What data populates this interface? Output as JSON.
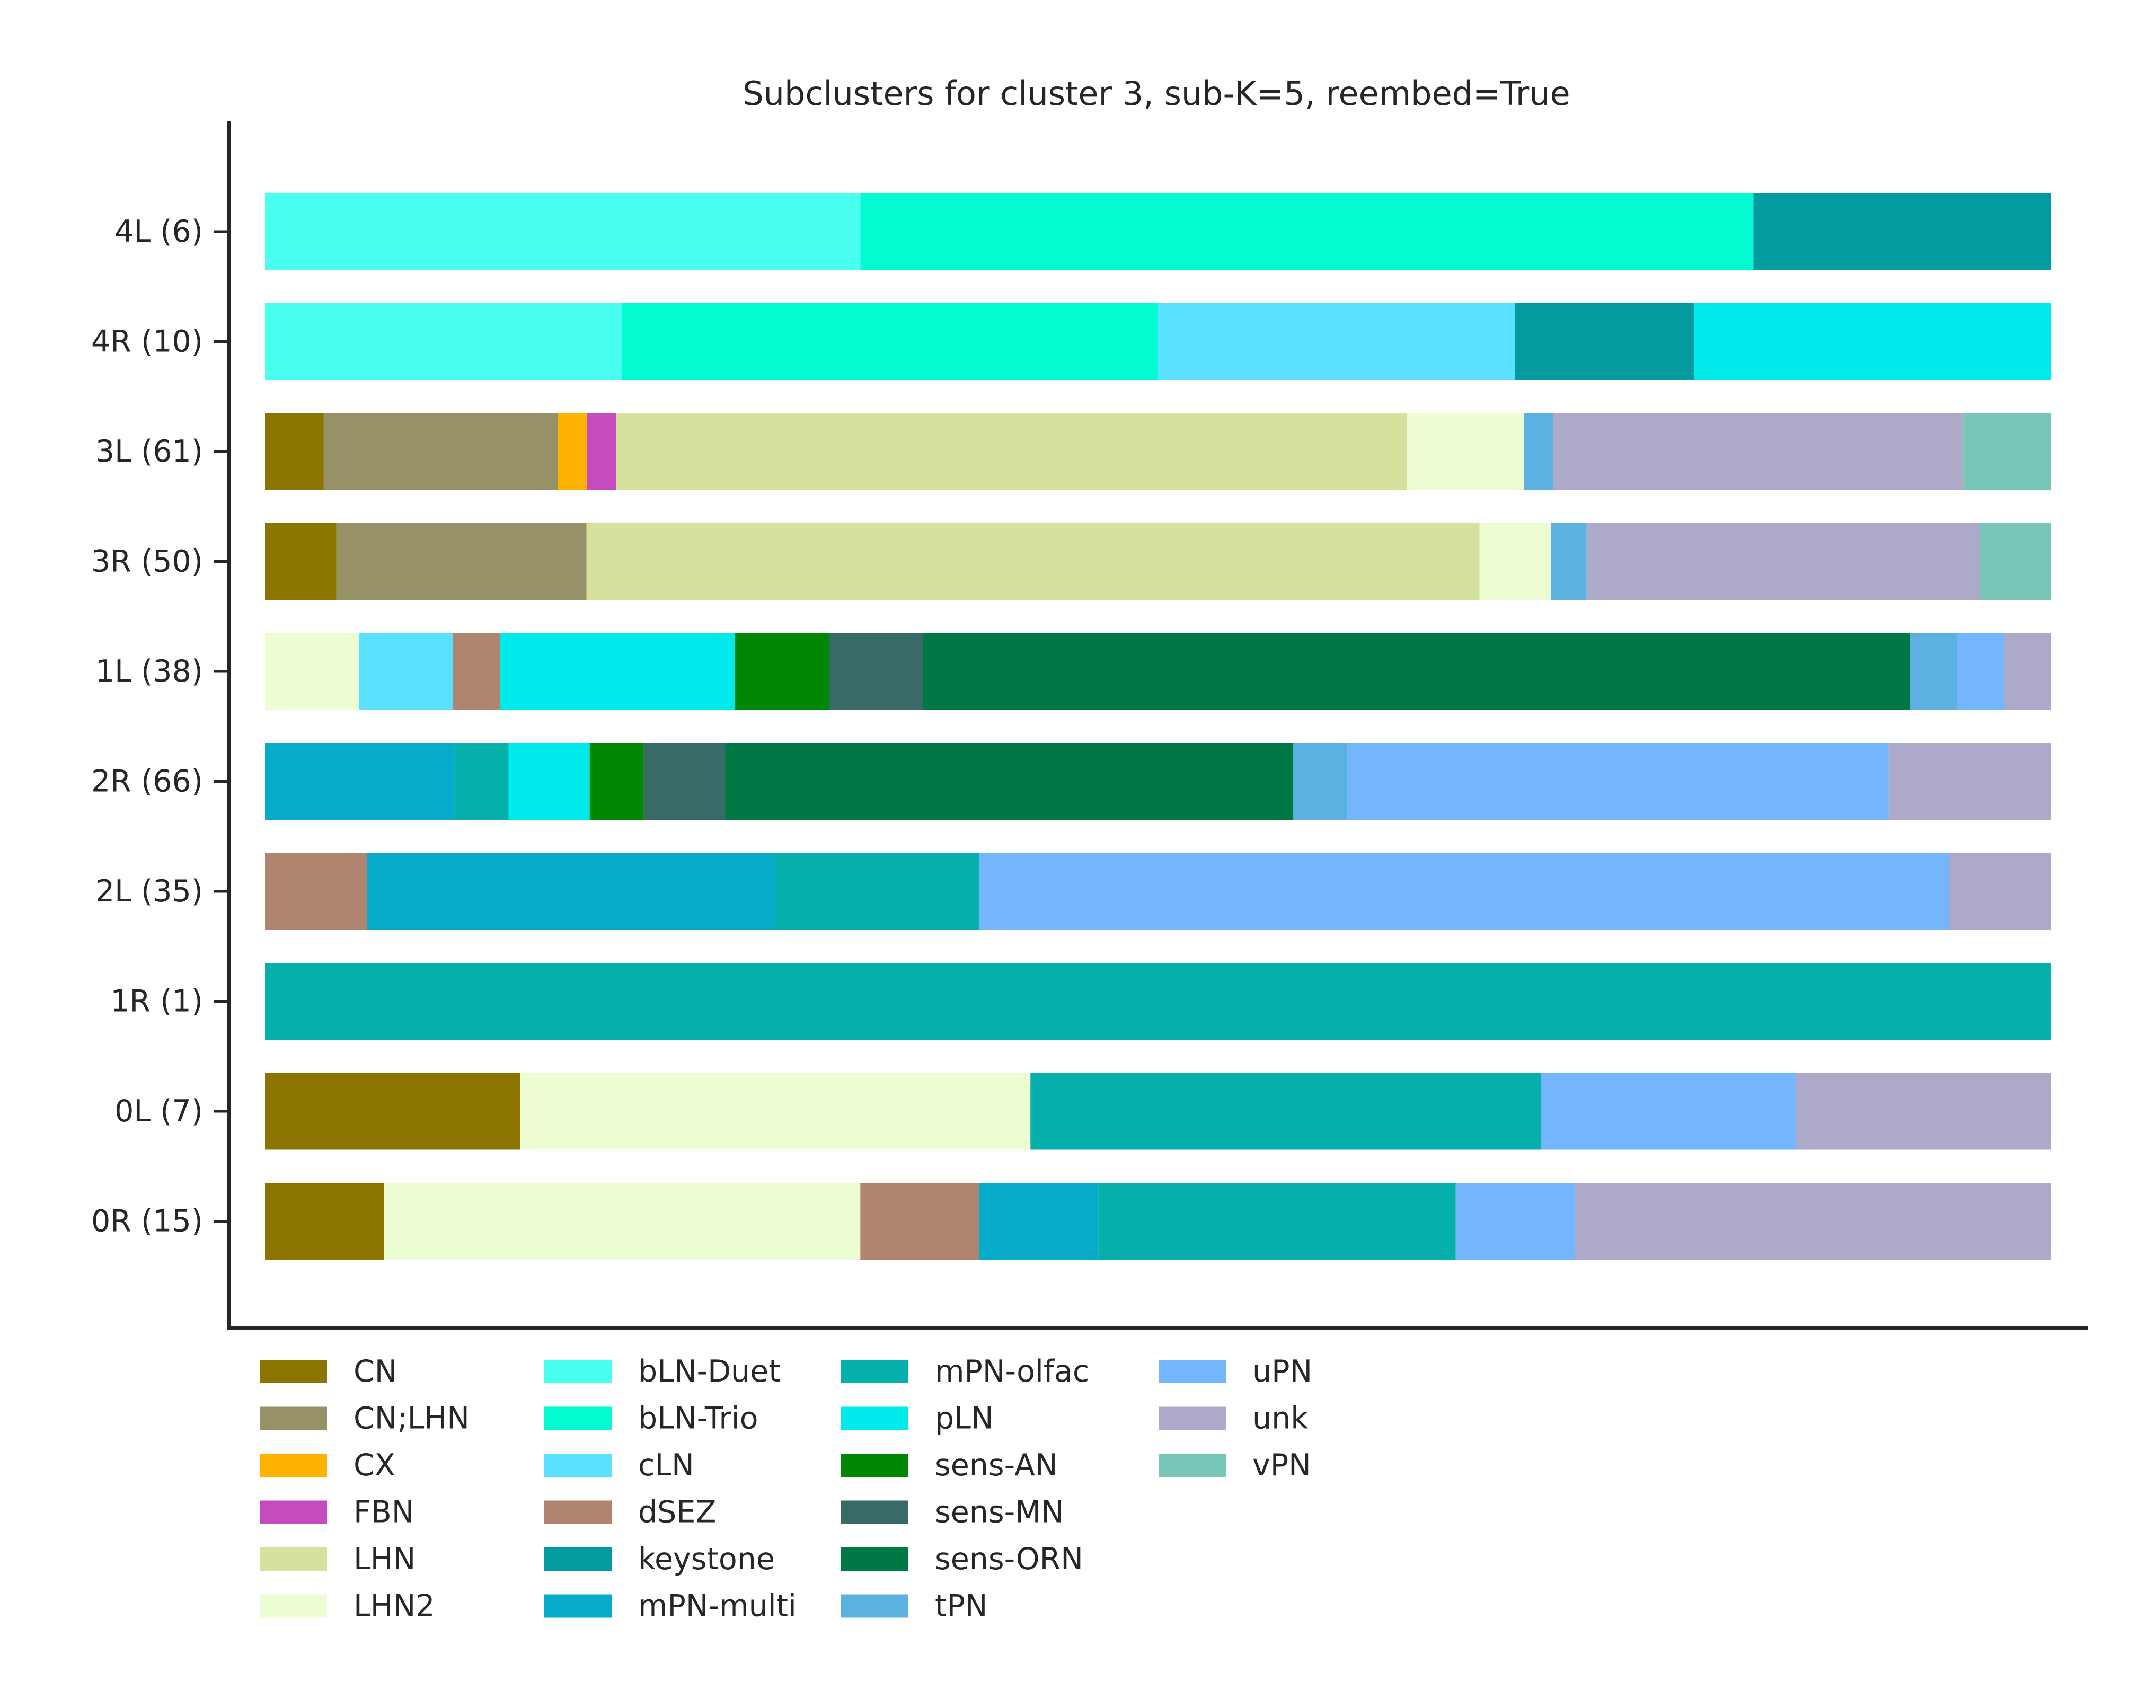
{
  "chart_data": {
    "type": "bar",
    "orientation": "horizontal",
    "stacked": true,
    "normalized": true,
    "title": "Subclusters for cluster 3, sub-K=5, reembed=True",
    "xlabel": "",
    "ylabel": "",
    "xlim": [
      0,
      1
    ],
    "grid": false,
    "legend_position": "bottom",
    "categories": [
      "4L (6)",
      "4R (10)",
      "3L (61)",
      "3R (50)",
      "1L (38)",
      "2R (66)",
      "2L (35)",
      "1R (1)",
      "0L (7)",
      "0R (15)"
    ],
    "legend": [
      {
        "name": "CN",
        "color": "#8b7500"
      },
      {
        "name": "CN;LHN",
        "color": "#969167"
      },
      {
        "name": "CX",
        "color": "#ffb300"
      },
      {
        "name": "FBN",
        "color": "#c44cbf"
      },
      {
        "name": "LHN",
        "color": "#d5e19d"
      },
      {
        "name": "LHN2",
        "color": "#ecfdd2"
      },
      {
        "name": "bLN-Duet",
        "color": "#48fff0"
      },
      {
        "name": "bLN-Trio",
        "color": "#00fcd0"
      },
      {
        "name": "cLN",
        "color": "#59e1ff"
      },
      {
        "name": "dSEZ",
        "color": "#b08570"
      },
      {
        "name": "keystone",
        "color": "#039b9f"
      },
      {
        "name": "mPN-multi",
        "color": "#05abc8"
      },
      {
        "name": "mPN-olfac",
        "color": "#06b0aa"
      },
      {
        "name": "pLN",
        "color": "#00eaeb"
      },
      {
        "name": "sens-AN",
        "color": "#008705"
      },
      {
        "name": "sens-MN",
        "color": "#386a67"
      },
      {
        "name": "sens-ORN",
        "color": "#007845"
      },
      {
        "name": "tPN",
        "color": "#5bb1e0"
      },
      {
        "name": "uPN",
        "color": "#74b6fe"
      },
      {
        "name": "unk",
        "color": "#adaac9"
      },
      {
        "name": "vPN",
        "color": "#77c6b7"
      }
    ],
    "rows": [
      {
        "label": "4L (6)",
        "segments": [
          {
            "class": "bLN-Duet",
            "count": 2
          },
          {
            "class": "bLN-Trio",
            "count": 3
          },
          {
            "class": "keystone",
            "count": 1
          }
        ]
      },
      {
        "label": "4R (10)",
        "segments": [
          {
            "class": "bLN-Duet",
            "count": 2
          },
          {
            "class": "bLN-Trio",
            "count": 3
          },
          {
            "class": "cLN",
            "count": 2
          },
          {
            "class": "keystone",
            "count": 1
          },
          {
            "class": "pLN",
            "count": 2
          }
        ]
      },
      {
        "label": "3L (61)",
        "segments": [
          {
            "class": "CN",
            "count": 2
          },
          {
            "class": "CN;LHN",
            "count": 8
          },
          {
            "class": "CX",
            "count": 1
          },
          {
            "class": "FBN",
            "count": 1
          },
          {
            "class": "LHN",
            "count": 27
          },
          {
            "class": "LHN2",
            "count": 4
          },
          {
            "class": "tPN",
            "count": 1
          },
          {
            "class": "unk",
            "count": 14
          },
          {
            "class": "vPN",
            "count": 3
          }
        ]
      },
      {
        "label": "3R (50)",
        "segments": [
          {
            "class": "CN",
            "count": 2
          },
          {
            "class": "CN;LHN",
            "count": 7
          },
          {
            "class": "LHN",
            "count": 25
          },
          {
            "class": "LHN2",
            "count": 2
          },
          {
            "class": "tPN",
            "count": 1
          },
          {
            "class": "unk",
            "count": 11
          },
          {
            "class": "vPN",
            "count": 2
          }
        ]
      },
      {
        "label": "1L (38)",
        "segments": [
          {
            "class": "LHN2",
            "count": 2
          },
          {
            "class": "cLN",
            "count": 2
          },
          {
            "class": "dSEZ",
            "count": 1
          },
          {
            "class": "pLN",
            "count": 5
          },
          {
            "class": "sens-AN",
            "count": 2
          },
          {
            "class": "sens-MN",
            "count": 2
          },
          {
            "class": "sens-ORN",
            "count": 21
          },
          {
            "class": "tPN",
            "count": 1
          },
          {
            "class": "uPN",
            "count": 1
          },
          {
            "class": "unk",
            "count": 1
          }
        ]
      },
      {
        "label": "2R (66)",
        "segments": [
          {
            "class": "mPN-multi",
            "count": 7
          },
          {
            "class": "mPN-olfac",
            "count": 2
          },
          {
            "class": "pLN",
            "count": 3
          },
          {
            "class": "sens-AN",
            "count": 2
          },
          {
            "class": "sens-MN",
            "count": 3
          },
          {
            "class": "sens-ORN",
            "count": 21
          },
          {
            "class": "tPN",
            "count": 2
          },
          {
            "class": "uPN",
            "count": 20
          },
          {
            "class": "unk",
            "count": 6
          }
        ]
      },
      {
        "label": "2L (35)",
        "segments": [
          {
            "class": "dSEZ",
            "count": 2
          },
          {
            "class": "mPN-multi",
            "count": 8
          },
          {
            "class": "mPN-olfac",
            "count": 4
          },
          {
            "class": "uPN",
            "count": 19
          },
          {
            "class": "unk",
            "count": 2
          }
        ]
      },
      {
        "label": "1R (1)",
        "segments": [
          {
            "class": "mPN-olfac",
            "count": 1
          }
        ]
      },
      {
        "label": "0L (7)",
        "segments": [
          {
            "class": "CN",
            "count": 1
          },
          {
            "class": "LHN2",
            "count": 2
          },
          {
            "class": "mPN-olfac",
            "count": 2
          },
          {
            "class": "uPN",
            "count": 1
          },
          {
            "class": "unk",
            "count": 1
          }
        ]
      },
      {
        "label": "0R (15)",
        "segments": [
          {
            "class": "CN",
            "count": 1
          },
          {
            "class": "LHN2",
            "count": 4
          },
          {
            "class": "dSEZ",
            "count": 1
          },
          {
            "class": "mPN-multi",
            "count": 1
          },
          {
            "class": "mPN-olfac",
            "count": 3
          },
          {
            "class": "uPN",
            "count": 1
          },
          {
            "class": "unk",
            "count": 4
          }
        ]
      }
    ]
  }
}
